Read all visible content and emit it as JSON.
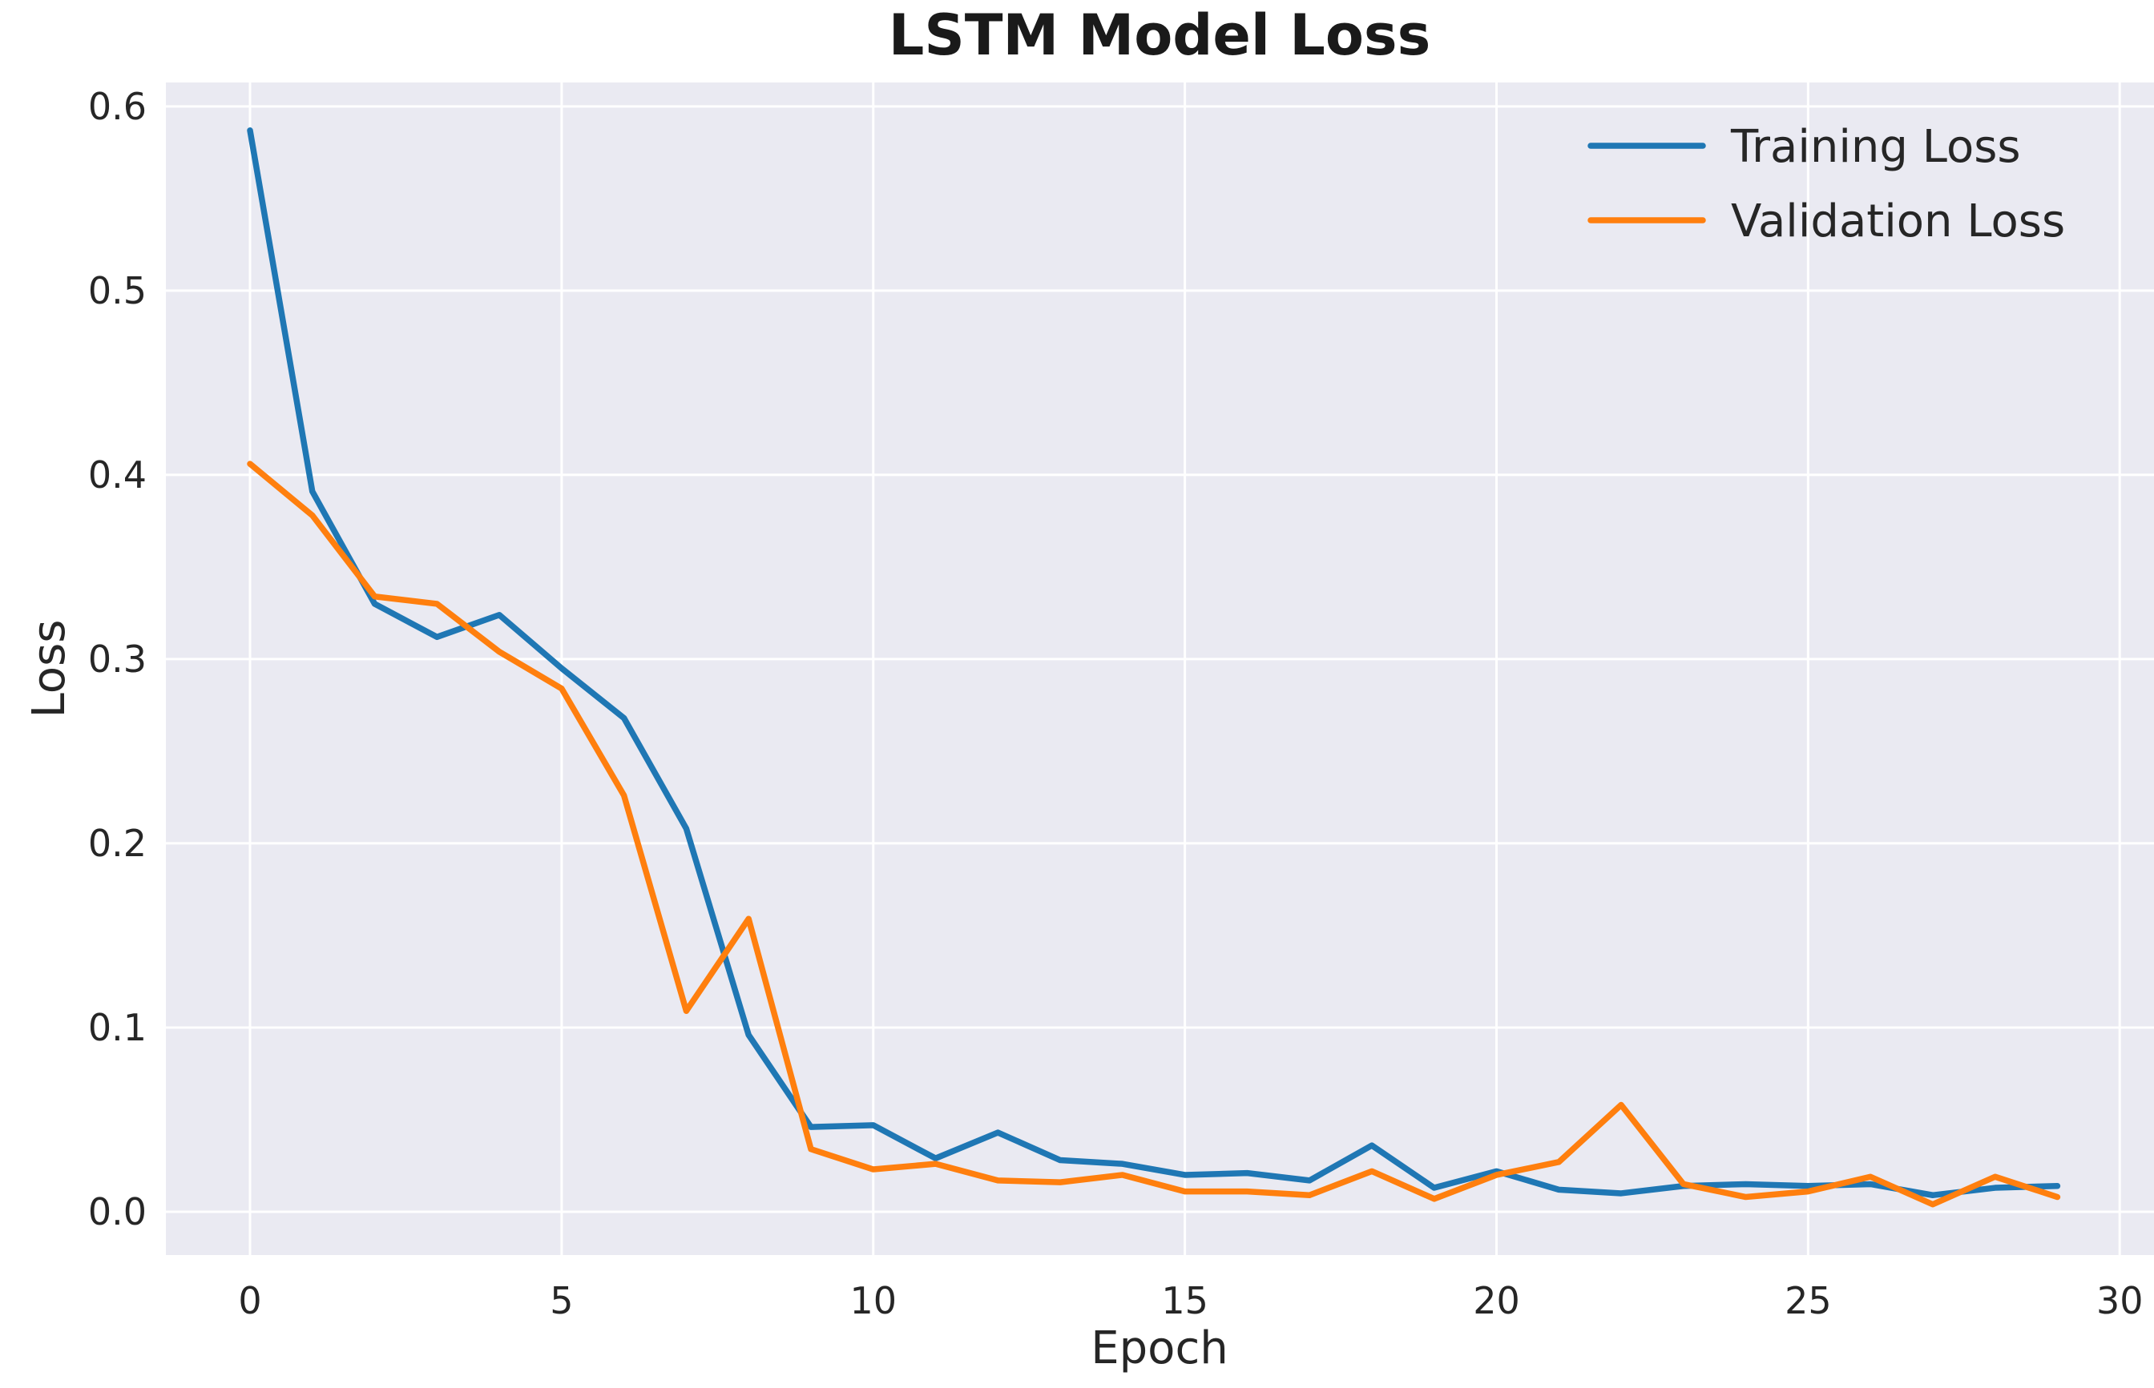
{
  "chart_data": {
    "type": "line",
    "title": "LSTM Model Loss",
    "xlabel": "Epoch",
    "ylabel": "Loss",
    "grid": true,
    "legend_position": "upper right",
    "background_color": "#eaeaf2",
    "gridline_color": "#ffffff",
    "text_color": "#262626",
    "xlim": [
      -1.35,
      30.55
    ],
    "ylim": [
      -0.0235,
      0.613
    ],
    "xticks": [
      0,
      5,
      10,
      15,
      20,
      25,
      30
    ],
    "yticks": [
      "0.0",
      "0.1",
      "0.2",
      "0.3",
      "0.4",
      "0.5",
      "0.6"
    ],
    "ytick_values": [
      0.0,
      0.1,
      0.2,
      0.3,
      0.4,
      0.5,
      0.6
    ],
    "x": [
      0,
      1,
      2,
      3,
      4,
      5,
      6,
      7,
      8,
      9,
      10,
      11,
      12,
      13,
      14,
      15,
      16,
      17,
      18,
      19,
      20,
      21,
      22,
      23,
      24,
      25,
      26,
      27,
      28,
      29
    ],
    "series": [
      {
        "name": "Training Loss",
        "color": "#1f77b4",
        "values": [
          0.587,
          0.391,
          0.33,
          0.312,
          0.324,
          0.295,
          0.268,
          0.208,
          0.096,
          0.046,
          0.047,
          0.029,
          0.043,
          0.028,
          0.026,
          0.02,
          0.021,
          0.017,
          0.036,
          0.013,
          0.022,
          0.012,
          0.01,
          0.014,
          0.015,
          0.014,
          0.015,
          0.009,
          0.013,
          0.014
        ]
      },
      {
        "name": "Validation Loss",
        "color": "#ff7f0e",
        "values": [
          0.406,
          0.378,
          0.334,
          0.33,
          0.304,
          0.284,
          0.226,
          0.109,
          0.159,
          0.034,
          0.023,
          0.026,
          0.017,
          0.016,
          0.02,
          0.011,
          0.011,
          0.009,
          0.022,
          0.007,
          0.02,
          0.027,
          0.058,
          0.015,
          0.008,
          0.011,
          0.019,
          0.004,
          0.019,
          0.008
        ]
      }
    ]
  }
}
